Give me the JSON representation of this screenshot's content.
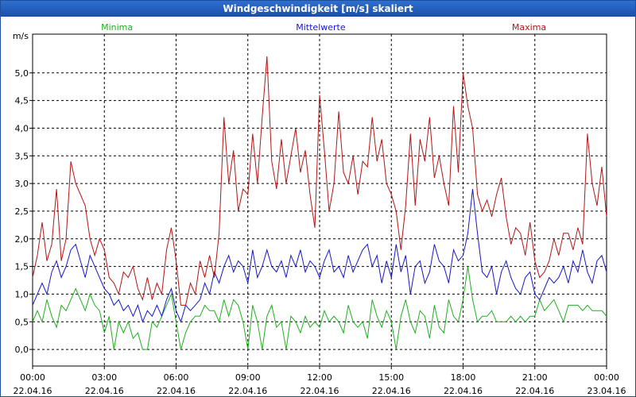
{
  "window": {
    "title": "Windgeschwindigkeit [m/s] skaliert"
  },
  "chart_data": {
    "type": "line",
    "title": "Windgeschwindigkeit [m/s] skaliert",
    "ylabel": "m/s",
    "ylim": [
      -0.3,
      5.7
    ],
    "yticks": [
      0.0,
      0.5,
      1.0,
      1.5,
      2.0,
      2.5,
      3.0,
      3.5,
      4.0,
      4.5,
      5.0
    ],
    "ytick_labels": [
      "0,0",
      "0,5",
      "1,0",
      "1,5",
      "2,0",
      "2,5",
      "3,0",
      "3,5",
      "4,0",
      "4,5",
      "5,0"
    ],
    "xlim": [
      0,
      24
    ],
    "xticks": [
      0,
      3,
      6,
      9,
      12,
      15,
      18,
      21,
      24
    ],
    "xtick_times": [
      "00:00",
      "03:00",
      "06:00",
      "09:00",
      "12:00",
      "15:00",
      "18:00",
      "21:00",
      "00:00"
    ],
    "xtick_dates": [
      "22.04.16",
      "22.04.16",
      "22.04.16",
      "22.04.16",
      "22.04.16",
      "22.04.16",
      "22.04.16",
      "22.04.16",
      "23.04.16"
    ],
    "grid": true,
    "series": [
      {
        "name": "Minima",
        "color": "#1fb01f",
        "x": [
          0,
          0.2,
          0.4,
          0.6,
          0.8,
          1,
          1.2,
          1.4,
          1.6,
          1.8,
          2,
          2.2,
          2.4,
          2.6,
          2.8,
          3,
          3.2,
          3.4,
          3.6,
          3.8,
          4,
          4.2,
          4.4,
          4.6,
          4.8,
          5,
          5.2,
          5.4,
          5.6,
          5.8,
          6,
          6.2,
          6.4,
          6.6,
          6.8,
          7,
          7.2,
          7.4,
          7.6,
          7.8,
          8,
          8.2,
          8.4,
          8.6,
          8.8,
          9,
          9.2,
          9.4,
          9.6,
          9.8,
          10,
          10.2,
          10.4,
          10.6,
          10.8,
          11,
          11.2,
          11.4,
          11.6,
          11.8,
          12,
          12.2,
          12.4,
          12.6,
          12.8,
          13,
          13.2,
          13.4,
          13.6,
          13.8,
          14,
          14.2,
          14.4,
          14.6,
          14.8,
          15,
          15.2,
          15.4,
          15.6,
          15.8,
          16,
          16.2,
          16.4,
          16.6,
          16.8,
          17,
          17.2,
          17.4,
          17.6,
          17.8,
          18,
          18.2,
          18.4,
          18.6,
          18.8,
          19,
          19.2,
          19.4,
          19.6,
          19.8,
          20,
          20.2,
          20.4,
          20.6,
          20.8,
          21,
          21.2,
          21.4,
          21.6,
          21.8,
          22,
          22.2,
          22.4,
          22.6,
          22.8,
          23,
          23.2,
          23.4,
          23.6,
          23.8,
          24
        ],
        "values": [
          0.5,
          0.7,
          0.5,
          0.9,
          0.6,
          0.4,
          0.8,
          0.7,
          0.9,
          1.1,
          0.9,
          0.7,
          1.0,
          0.8,
          0.7,
          0.3,
          0.6,
          0.0,
          0.5,
          0.3,
          0.5,
          0.2,
          0.3,
          0.0,
          0.0,
          0.5,
          0.4,
          0.6,
          0.8,
          1.0,
          0.5,
          0.0,
          0.3,
          0.5,
          0.6,
          0.6,
          0.8,
          0.7,
          0.7,
          0.5,
          0.9,
          0.6,
          0.9,
          0.8,
          0.5,
          0.0,
          0.8,
          0.5,
          0.0,
          0.6,
          0.8,
          0.4,
          0.5,
          0.0,
          0.6,
          0.5,
          0.3,
          0.6,
          0.4,
          0.5,
          0.4,
          0.7,
          0.5,
          0.6,
          0.5,
          0.3,
          0.8,
          0.5,
          0.4,
          0.5,
          0.2,
          0.9,
          0.6,
          0.4,
          0.7,
          0.5,
          0.0,
          0.6,
          0.9,
          0.5,
          0.3,
          0.7,
          0.6,
          0.2,
          0.8,
          0.4,
          0.3,
          0.9,
          0.6,
          0.5,
          0.9,
          1.5,
          0.9,
          0.5,
          0.6,
          0.6,
          0.7,
          0.5,
          0.5,
          0.5,
          0.6,
          0.5,
          0.6,
          0.5,
          0.6,
          0.6,
          0.9,
          0.7,
          0.8,
          0.9,
          0.7,
          0.5,
          0.8,
          0.8,
          0.8,
          0.7,
          0.8,
          0.7,
          0.7,
          0.7,
          0.6
        ]
      },
      {
        "name": "Mittelwerte",
        "color": "#1717c8",
        "x": [
          0,
          0.2,
          0.4,
          0.6,
          0.8,
          1,
          1.2,
          1.4,
          1.6,
          1.8,
          2,
          2.2,
          2.4,
          2.6,
          2.8,
          3,
          3.2,
          3.4,
          3.6,
          3.8,
          4,
          4.2,
          4.4,
          4.6,
          4.8,
          5,
          5.2,
          5.4,
          5.6,
          5.8,
          6,
          6.2,
          6.4,
          6.6,
          6.8,
          7,
          7.2,
          7.4,
          7.6,
          7.8,
          8,
          8.2,
          8.4,
          8.6,
          8.8,
          9,
          9.2,
          9.4,
          9.6,
          9.8,
          10,
          10.2,
          10.4,
          10.6,
          10.8,
          11,
          11.2,
          11.4,
          11.6,
          11.8,
          12,
          12.2,
          12.4,
          12.6,
          12.8,
          13,
          13.2,
          13.4,
          13.6,
          13.8,
          14,
          14.2,
          14.4,
          14.6,
          14.8,
          15,
          15.2,
          15.4,
          15.6,
          15.8,
          16,
          16.2,
          16.4,
          16.6,
          16.8,
          17,
          17.2,
          17.4,
          17.6,
          17.8,
          18,
          18.2,
          18.4,
          18.6,
          18.8,
          19,
          19.2,
          19.4,
          19.6,
          19.8,
          20,
          20.2,
          20.4,
          20.6,
          20.8,
          21,
          21.2,
          21.4,
          21.6,
          21.8,
          22,
          22.2,
          22.4,
          22.6,
          22.8,
          23,
          23.2,
          23.4,
          23.6,
          23.8,
          24
        ],
        "values": [
          0.8,
          1.0,
          1.2,
          1.0,
          1.4,
          1.6,
          1.3,
          1.5,
          1.8,
          1.9,
          1.6,
          1.3,
          1.7,
          1.5,
          1.3,
          1.1,
          1.0,
          0.8,
          0.9,
          0.7,
          0.8,
          0.6,
          0.8,
          0.5,
          0.7,
          0.6,
          0.8,
          0.6,
          0.9,
          1.1,
          0.7,
          0.5,
          0.8,
          0.7,
          0.8,
          0.9,
          1.2,
          1.0,
          1.4,
          1.2,
          1.5,
          1.7,
          1.4,
          1.6,
          1.5,
          1.2,
          1.8,
          1.3,
          1.5,
          1.8,
          1.5,
          1.4,
          1.6,
          1.3,
          1.7,
          1.5,
          1.8,
          1.4,
          1.6,
          1.5,
          1.3,
          1.6,
          1.8,
          1.4,
          1.5,
          1.3,
          1.7,
          1.4,
          1.6,
          1.8,
          1.9,
          1.5,
          1.7,
          1.2,
          1.6,
          1.3,
          1.9,
          1.4,
          1.7,
          1.0,
          1.5,
          1.6,
          1.2,
          1.4,
          1.9,
          1.6,
          1.5,
          1.2,
          1.8,
          1.6,
          1.7,
          2.1,
          2.9,
          2.1,
          1.4,
          1.3,
          1.5,
          1.0,
          1.4,
          1.6,
          1.3,
          1.1,
          1.0,
          1.3,
          1.4,
          1.0,
          0.9,
          1.1,
          1.3,
          1.2,
          1.3,
          1.5,
          1.2,
          1.6,
          1.4,
          1.8,
          1.4,
          1.2,
          1.6,
          1.7,
          1.4
        ]
      },
      {
        "name": "Maxima",
        "color": "#b41515",
        "x": [
          0,
          0.2,
          0.4,
          0.6,
          0.8,
          1,
          1.2,
          1.4,
          1.6,
          1.8,
          2,
          2.2,
          2.4,
          2.6,
          2.8,
          3,
          3.2,
          3.4,
          3.6,
          3.8,
          4,
          4.2,
          4.4,
          4.6,
          4.8,
          5,
          5.2,
          5.4,
          5.6,
          5.8,
          6,
          6.2,
          6.4,
          6.6,
          6.8,
          7,
          7.2,
          7.4,
          7.6,
          7.8,
          8,
          8.2,
          8.4,
          8.6,
          8.8,
          9,
          9.2,
          9.4,
          9.6,
          9.8,
          10,
          10.2,
          10.4,
          10.6,
          10.8,
          11,
          11.2,
          11.4,
          11.6,
          11.8,
          12,
          12.2,
          12.4,
          12.6,
          12.8,
          13,
          13.2,
          13.4,
          13.6,
          13.8,
          14,
          14.2,
          14.4,
          14.6,
          14.8,
          15,
          15.2,
          15.4,
          15.6,
          15.8,
          16,
          16.2,
          16.4,
          16.6,
          16.8,
          17,
          17.2,
          17.4,
          17.6,
          17.8,
          18,
          18.2,
          18.4,
          18.6,
          18.8,
          19,
          19.2,
          19.4,
          19.6,
          19.8,
          20,
          20.2,
          20.4,
          20.6,
          20.8,
          21,
          21.2,
          21.4,
          21.6,
          21.8,
          22,
          22.2,
          22.4,
          22.6,
          22.8,
          23,
          23.2,
          23.4,
          23.6,
          23.8,
          24
        ],
        "values": [
          1.3,
          1.7,
          2.3,
          1.6,
          1.9,
          2.9,
          1.6,
          2.0,
          3.4,
          3.0,
          2.8,
          2.6,
          2.0,
          1.7,
          2.0,
          1.8,
          1.3,
          1.2,
          1.0,
          1.4,
          1.3,
          1.5,
          1.1,
          0.9,
          1.3,
          0.9,
          1.2,
          1.0,
          1.8,
          2.2,
          1.6,
          0.8,
          0.8,
          1.2,
          1.0,
          1.6,
          1.3,
          1.7,
          1.3,
          2.1,
          4.2,
          3.0,
          3.6,
          2.5,
          2.9,
          2.8,
          3.9,
          3.0,
          4.2,
          5.3,
          3.4,
          2.9,
          3.8,
          3.0,
          3.5,
          4.0,
          3.2,
          3.6,
          2.8,
          2.2,
          4.6,
          3.6,
          2.5,
          3.0,
          4.3,
          3.2,
          3.0,
          3.5,
          2.8,
          3.4,
          3.3,
          4.2,
          3.4,
          3.8,
          3.0,
          2.8,
          2.5,
          1.8,
          2.6,
          3.9,
          2.6,
          3.8,
          3.4,
          4.2,
          3.1,
          3.5,
          3.0,
          2.6,
          4.4,
          3.2,
          5.0,
          4.4,
          4.0,
          2.8,
          2.5,
          2.7,
          2.4,
          2.8,
          3.1,
          2.4,
          1.9,
          2.2,
          2.1,
          1.7,
          2.3,
          1.6,
          1.3,
          1.4,
          1.6,
          2.0,
          1.7,
          2.1,
          2.1,
          1.8,
          2.2,
          1.9,
          3.9,
          3.0,
          2.6,
          3.3,
          2.4
        ]
      }
    ]
  }
}
